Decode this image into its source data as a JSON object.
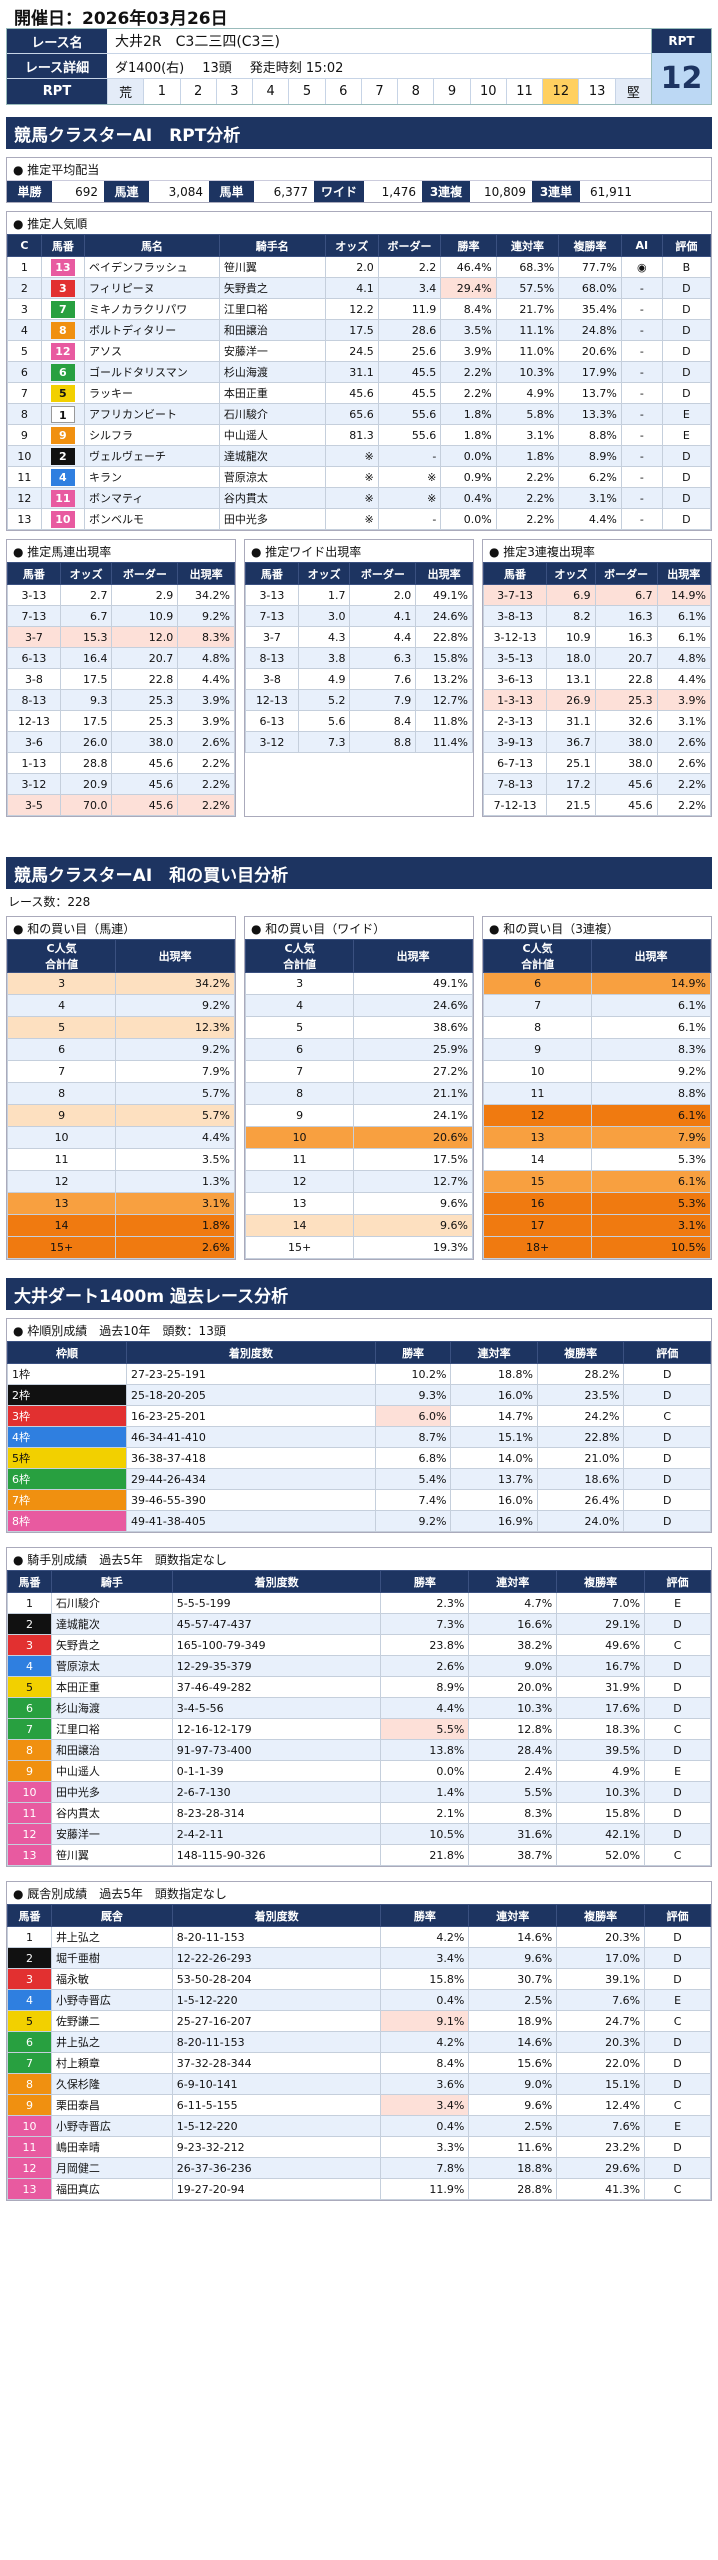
{
  "header": {
    "date_label": "開催日：2026年03月26日"
  },
  "race": {
    "name_label": "レース名",
    "name": "大井2R　C3二三四(C3三)",
    "detail_label": "レース詳細",
    "course": "ダ1400(右)",
    "heads": "13頭",
    "start": "発走時刻 15:02",
    "rpt_label": "RPT",
    "rpt_cells": [
      "荒",
      "1",
      "2",
      "3",
      "4",
      "5",
      "6",
      "7",
      "8",
      "9",
      "10",
      "11",
      "12",
      "13",
      "堅"
    ],
    "rpt_value": "12"
  },
  "section1": {
    "title": "競馬クラスターAI　RPT分析"
  },
  "payout": {
    "title": "● 推定平均配当",
    "items": [
      {
        "label": "単勝",
        "value": "692"
      },
      {
        "label": "馬連",
        "value": "3,084"
      },
      {
        "label": "馬単",
        "value": "6,377"
      },
      {
        "label": "ワイド",
        "value": "1,476"
      },
      {
        "label": "3連複",
        "value": "10,809"
      },
      {
        "label": "3連単",
        "value": "61,911"
      }
    ]
  },
  "popularity": {
    "title": "● 推定人気順",
    "headers": [
      "C",
      "馬番",
      "馬名",
      "騎手名",
      "オッズ",
      "ボーダー",
      "勝率",
      "連対率",
      "複勝率",
      "AI",
      "評価"
    ],
    "rows": [
      [
        "1",
        "13",
        "ベイデンフラッシュ",
        "笹川翼",
        "2.0",
        "2.2",
        "46.4%",
        "68.3%",
        "77.7%",
        "◉",
        "B"
      ],
      [
        "2",
        "3",
        "フィリピーヌ",
        "矢野貴之",
        "4.1",
        "3.4",
        "29.4%",
        "57.5%",
        "68.0%",
        "-",
        "D"
      ],
      [
        "3",
        "7",
        "ミキノカラクリパワ",
        "江里口裕",
        "12.2",
        "11.9",
        "8.4%",
        "21.7%",
        "35.4%",
        "-",
        "D"
      ],
      [
        "4",
        "8",
        "ボルトディタリー",
        "和田譲治",
        "17.5",
        "28.6",
        "3.5%",
        "11.1%",
        "24.8%",
        "-",
        "D"
      ],
      [
        "5",
        "12",
        "アソス",
        "安藤洋一",
        "24.5",
        "25.6",
        "3.9%",
        "11.0%",
        "20.6%",
        "-",
        "D"
      ],
      [
        "6",
        "6",
        "ゴールドタリスマン",
        "杉山海渡",
        "31.1",
        "45.5",
        "2.2%",
        "10.3%",
        "17.9%",
        "-",
        "D"
      ],
      [
        "7",
        "5",
        "ラッキー",
        "本田正重",
        "45.6",
        "45.5",
        "2.2%",
        "4.9%",
        "13.7%",
        "-",
        "D"
      ],
      [
        "8",
        "1",
        "アフリカンビート",
        "石川駿介",
        "65.6",
        "55.6",
        "1.8%",
        "5.8%",
        "13.3%",
        "-",
        "E"
      ],
      [
        "9",
        "9",
        "シルフラ",
        "中山遥人",
        "81.3",
        "55.6",
        "1.8%",
        "3.1%",
        "8.8%",
        "-",
        "E"
      ],
      [
        "10",
        "2",
        "ヴェルヴェーチ",
        "達城龍次",
        "※",
        "-",
        "0.0%",
        "1.8%",
        "8.9%",
        "-",
        "D"
      ],
      [
        "11",
        "4",
        "キラン",
        "菅原涼太",
        "※",
        "※",
        "0.9%",
        "2.2%",
        "6.2%",
        "-",
        "D"
      ],
      [
        "12",
        "11",
        "ボンマティ",
        "谷内貫太",
        "※",
        "※",
        "0.4%",
        "2.2%",
        "3.1%",
        "-",
        "D"
      ],
      [
        "13",
        "10",
        "ボンベルモ",
        "田中光多",
        "※",
        "-",
        "0.0%",
        "2.2%",
        "4.4%",
        "-",
        "D"
      ]
    ]
  },
  "est_umaren": {
    "title": "● 推定馬連出現率",
    "headers": [
      "馬番",
      "オッズ",
      "ボーダー",
      "出現率"
    ],
    "rows": [
      [
        "3-13",
        "2.7",
        "2.9",
        "34.2%"
      ],
      [
        "7-13",
        "6.7",
        "10.9",
        "9.2%"
      ],
      [
        "3-7",
        "15.3",
        "12.0",
        "8.3%"
      ],
      [
        "6-13",
        "16.4",
        "20.7",
        "4.8%"
      ],
      [
        "3-8",
        "17.5",
        "22.8",
        "4.4%"
      ],
      [
        "8-13",
        "9.3",
        "25.3",
        "3.9%"
      ],
      [
        "12-13",
        "17.5",
        "25.3",
        "3.9%"
      ],
      [
        "3-6",
        "26.0",
        "38.0",
        "2.6%"
      ],
      [
        "1-13",
        "28.8",
        "45.6",
        "2.2%"
      ],
      [
        "3-12",
        "20.9",
        "45.6",
        "2.2%"
      ],
      [
        "3-5",
        "70.0",
        "45.6",
        "2.2%"
      ]
    ]
  },
  "est_wide": {
    "title": "● 推定ワイド出現率",
    "headers": [
      "馬番",
      "オッズ",
      "ボーダー",
      "出現率"
    ],
    "rows": [
      [
        "3-13",
        "1.7",
        "2.0",
        "49.1%"
      ],
      [
        "7-13",
        "3.0",
        "4.1",
        "24.6%"
      ],
      [
        "3-7",
        "4.3",
        "4.4",
        "22.8%"
      ],
      [
        "8-13",
        "3.8",
        "6.3",
        "15.8%"
      ],
      [
        "3-8",
        "4.9",
        "7.6",
        "13.2%"
      ],
      [
        "12-13",
        "5.2",
        "7.9",
        "12.7%"
      ],
      [
        "6-13",
        "5.6",
        "8.4",
        "11.8%"
      ],
      [
        "3-12",
        "7.3",
        "8.8",
        "11.4%"
      ]
    ]
  },
  "est_trio": {
    "title": "● 推定3連複出現率",
    "headers": [
      "馬番",
      "オッズ",
      "ボーダー",
      "出現率"
    ],
    "rows": [
      [
        "3-7-13",
        "6.9",
        "6.7",
        "14.9%"
      ],
      [
        "3-8-13",
        "8.2",
        "16.3",
        "6.1%"
      ],
      [
        "3-12-13",
        "10.9",
        "16.3",
        "6.1%"
      ],
      [
        "3-5-13",
        "18.0",
        "20.7",
        "4.8%"
      ],
      [
        "3-6-13",
        "13.1",
        "22.8",
        "4.4%"
      ],
      [
        "1-3-13",
        "26.9",
        "25.3",
        "3.9%"
      ],
      [
        "2-3-13",
        "31.1",
        "32.6",
        "3.1%"
      ],
      [
        "3-9-13",
        "36.7",
        "38.0",
        "2.6%"
      ],
      [
        "6-7-13",
        "25.1",
        "38.0",
        "2.6%"
      ],
      [
        "7-8-13",
        "17.2",
        "45.6",
        "2.2%"
      ],
      [
        "7-12-13",
        "21.5",
        "45.6",
        "2.2%"
      ]
    ]
  },
  "section2": {
    "title": "競馬クラスターAI　和の買い目分析",
    "race_count": "レース数：228"
  },
  "sum_umaren": {
    "title": "● 和の買い目（馬連）",
    "headers": [
      "C人気\n合計値",
      "出現率"
    ],
    "rows": [
      [
        "3",
        "34.2%"
      ],
      [
        "4",
        "9.2%"
      ],
      [
        "5",
        "12.3%"
      ],
      [
        "6",
        "9.2%"
      ],
      [
        "7",
        "7.9%"
      ],
      [
        "8",
        "5.7%"
      ],
      [
        "9",
        "5.7%"
      ],
      [
        "10",
        "4.4%"
      ],
      [
        "11",
        "3.5%"
      ],
      [
        "12",
        "1.3%"
      ],
      [
        "13",
        "3.1%"
      ],
      [
        "14",
        "1.8%"
      ],
      [
        "15+",
        "2.6%"
      ]
    ],
    "levels": [
      1,
      0,
      1,
      0,
      0,
      0,
      1,
      0,
      0,
      0,
      2,
      3,
      3
    ]
  },
  "sum_wide": {
    "title": "● 和の買い目（ワイド）",
    "headers": [
      "C人気\n合計値",
      "出現率"
    ],
    "rows": [
      [
        "3",
        "49.1%"
      ],
      [
        "4",
        "24.6%"
      ],
      [
        "5",
        "38.6%"
      ],
      [
        "6",
        "25.9%"
      ],
      [
        "7",
        "27.2%"
      ],
      [
        "8",
        "21.1%"
      ],
      [
        "9",
        "24.1%"
      ],
      [
        "10",
        "20.6%"
      ],
      [
        "11",
        "17.5%"
      ],
      [
        "12",
        "12.7%"
      ],
      [
        "13",
        "9.6%"
      ],
      [
        "14",
        "9.6%"
      ],
      [
        "15+",
        "19.3%"
      ]
    ],
    "levels": [
      0,
      0,
      0,
      0,
      0,
      0,
      0,
      2,
      0,
      0,
      0,
      1,
      0
    ]
  },
  "sum_trio": {
    "title": "● 和の買い目（3連複）",
    "headers": [
      "C人気\n合計値",
      "出現率"
    ],
    "rows": [
      [
        "6",
        "14.9%"
      ],
      [
        "7",
        "6.1%"
      ],
      [
        "8",
        "6.1%"
      ],
      [
        "9",
        "8.3%"
      ],
      [
        "10",
        "9.2%"
      ],
      [
        "11",
        "8.8%"
      ],
      [
        "12",
        "6.1%"
      ],
      [
        "13",
        "7.9%"
      ],
      [
        "14",
        "5.3%"
      ],
      [
        "15",
        "6.1%"
      ],
      [
        "16",
        "5.3%"
      ],
      [
        "17",
        "3.1%"
      ],
      [
        "18+",
        "10.5%"
      ]
    ],
    "levels": [
      2,
      0,
      0,
      0,
      0,
      0,
      3,
      2,
      0,
      2,
      3,
      3,
      3
    ]
  },
  "section3": {
    "title": "大井ダート1400m 過去レース分析"
  },
  "frame": {
    "title": "● 枠順別成績　過去10年　頭数：13頭",
    "headers": [
      "枠順",
      "着別度数",
      "勝率",
      "連対率",
      "複勝率",
      "評価"
    ],
    "rows": [
      [
        "1枠",
        "27-23-25-191",
        "10.2%",
        "18.8%",
        "28.2%",
        "D"
      ],
      [
        "2枠",
        "25-18-20-205",
        "9.3%",
        "16.0%",
        "23.5%",
        "D"
      ],
      [
        "3枠",
        "16-23-25-201",
        "6.0%",
        "14.7%",
        "24.2%",
        "C"
      ],
      [
        "4枠",
        "46-34-41-410",
        "8.7%",
        "15.1%",
        "22.8%",
        "D"
      ],
      [
        "5枠",
        "36-38-37-418",
        "6.8%",
        "14.0%",
        "21.0%",
        "D"
      ],
      [
        "6枠",
        "29-44-26-434",
        "5.4%",
        "13.7%",
        "18.6%",
        "D"
      ],
      [
        "7枠",
        "39-46-55-390",
        "7.4%",
        "16.0%",
        "26.4%",
        "D"
      ],
      [
        "8枠",
        "49-41-38-405",
        "9.2%",
        "16.9%",
        "24.0%",
        "D"
      ]
    ]
  },
  "jockey": {
    "title": "● 騎手別成績　過去5年　頭数指定なし",
    "headers": [
      "馬番",
      "騎手",
      "着別度数",
      "勝率",
      "連対率",
      "複勝率",
      "評価"
    ],
    "rows": [
      [
        "1",
        "石川駿介",
        "5-5-5-199",
        "2.3%",
        "4.7%",
        "7.0%",
        "E"
      ],
      [
        "2",
        "達城龍次",
        "45-57-47-437",
        "7.3%",
        "16.6%",
        "29.1%",
        "D"
      ],
      [
        "3",
        "矢野貴之",
        "165-100-79-349",
        "23.8%",
        "38.2%",
        "49.6%",
        "C"
      ],
      [
        "4",
        "菅原涼太",
        "12-29-35-379",
        "2.6%",
        "9.0%",
        "16.7%",
        "D"
      ],
      [
        "5",
        "本田正重",
        "37-46-49-282",
        "8.9%",
        "20.0%",
        "31.9%",
        "D"
      ],
      [
        "6",
        "杉山海渡",
        "3-4-5-56",
        "4.4%",
        "10.3%",
        "17.6%",
        "D"
      ],
      [
        "7",
        "江里口裕",
        "12-16-12-179",
        "5.5%",
        "12.8%",
        "18.3%",
        "C"
      ],
      [
        "8",
        "和田譲治",
        "91-97-73-400",
        "13.8%",
        "28.4%",
        "39.5%",
        "D"
      ],
      [
        "9",
        "中山遥人",
        "0-1-1-39",
        "0.0%",
        "2.4%",
        "4.9%",
        "E"
      ],
      [
        "10",
        "田中光多",
        "2-6-7-130",
        "1.4%",
        "5.5%",
        "10.3%",
        "D"
      ],
      [
        "11",
        "谷内貫太",
        "8-23-28-314",
        "2.1%",
        "8.3%",
        "15.8%",
        "D"
      ],
      [
        "12",
        "安藤洋一",
        "2-4-2-11",
        "10.5%",
        "31.6%",
        "42.1%",
        "D"
      ],
      [
        "13",
        "笹川翼",
        "148-115-90-326",
        "21.8%",
        "38.7%",
        "52.0%",
        "C"
      ]
    ]
  },
  "trainer": {
    "title": "● 厩舎別成績　過去5年　頭数指定なし",
    "headers": [
      "馬番",
      "厩舎",
      "着別度数",
      "勝率",
      "連対率",
      "複勝率",
      "評価"
    ],
    "rows": [
      [
        "1",
        "井上弘之",
        "8-20-11-153",
        "4.2%",
        "14.6%",
        "20.3%",
        "D"
      ],
      [
        "2",
        "堀千亜樹",
        "12-22-26-293",
        "3.4%",
        "9.6%",
        "17.0%",
        "D"
      ],
      [
        "3",
        "福永敏",
        "53-50-28-204",
        "15.8%",
        "30.7%",
        "39.1%",
        "D"
      ],
      [
        "4",
        "小野寺晋広",
        "1-5-12-220",
        "0.4%",
        "2.5%",
        "7.6%",
        "E"
      ],
      [
        "5",
        "佐野謙二",
        "25-27-16-207",
        "9.1%",
        "18.9%",
        "24.7%",
        "C"
      ],
      [
        "6",
        "井上弘之",
        "8-20-11-153",
        "4.2%",
        "14.6%",
        "20.3%",
        "D"
      ],
      [
        "7",
        "村上頼章",
        "37-32-28-344",
        "8.4%",
        "15.6%",
        "22.0%",
        "D"
      ],
      [
        "8",
        "久保杉隆",
        "6-9-10-141",
        "3.6%",
        "9.0%",
        "15.1%",
        "D"
      ],
      [
        "9",
        "栗田泰昌",
        "6-11-5-155",
        "3.4%",
        "9.6%",
        "12.4%",
        "C"
      ],
      [
        "10",
        "小野寺晋広",
        "1-5-12-220",
        "0.4%",
        "2.5%",
        "7.6%",
        "E"
      ],
      [
        "11",
        "嶋田幸晴",
        "9-23-32-212",
        "3.3%",
        "11.6%",
        "23.2%",
        "D"
      ],
      [
        "12",
        "月岡健二",
        "26-37-36-236",
        "7.8%",
        "18.8%",
        "29.6%",
        "D"
      ],
      [
        "13",
        "福田真広",
        "19-27-20-94",
        "11.9%",
        "28.8%",
        "41.3%",
        "C"
      ]
    ]
  },
  "colors": {
    "navy": "#1d3461",
    "frame1": "#ffffff",
    "frame2": "#111111",
    "frame3": "#e23030",
    "frame4": "#2f7fe0",
    "frame5": "#f2d000",
    "frame6": "#28a040",
    "frame7": "#f09010",
    "frame8": "#e85aa0"
  }
}
